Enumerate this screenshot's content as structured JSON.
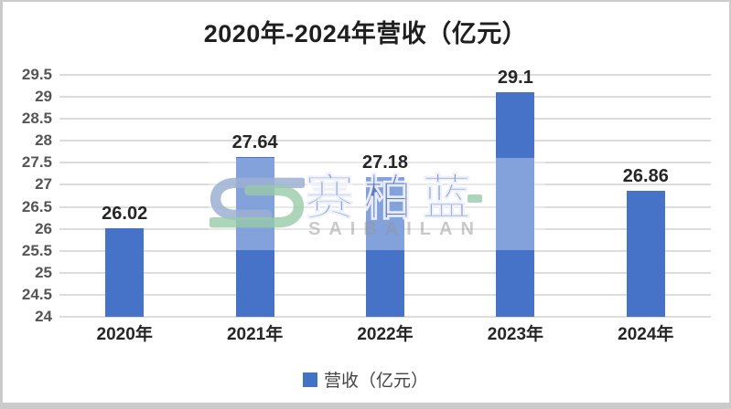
{
  "chart_data": {
    "type": "bar",
    "title": "2020年-2024年营收（亿元）",
    "categories": [
      "2020年",
      "2021年",
      "2022年",
      "2023年",
      "2024年"
    ],
    "series": [
      {
        "name": "营收（亿元）",
        "values": [
          26.02,
          27.64,
          27.18,
          29.1,
          26.86
        ]
      }
    ],
    "value_labels": [
      "26.02",
      "27.64",
      "27.18",
      "29.1",
      "26.86"
    ],
    "xlabel": "",
    "ylabel": "",
    "ylim": [
      24,
      29.5
    ],
    "ytick_labels": [
      "29.5",
      "29",
      "28.5",
      "28",
      "27.5",
      "27",
      "26.5",
      "26",
      "25.5",
      "25",
      "24.5",
      "24"
    ],
    "grid": true,
    "legend_position": "bottom"
  },
  "legend": {
    "label": "营收（亿元）",
    "swatch_color": "#4472C4"
  },
  "colors": {
    "page_bg": "#cbcbcb",
    "card_bg": "#ffffff",
    "bar": "#4673C8",
    "grid": "#dcdcdc",
    "axis_text": "#555555",
    "label_text": "#262626",
    "title_text": "#1f1f1f",
    "legend_text": "#444444"
  },
  "watermark": {
    "cn": "赛柏蓝",
    "en": "SAIBAILAN",
    "logo": "saibailan-s-loop-logo",
    "band_overlay": "rgba(255,255,255,0.33)",
    "cn_color": "rgba(70,100,185,0.6)",
    "en_color": "rgba(150,150,150,0.5)",
    "logo_blue": "rgba(156,176,210,0.85)",
    "logo_green": "rgba(152,203,168,0.8)"
  }
}
